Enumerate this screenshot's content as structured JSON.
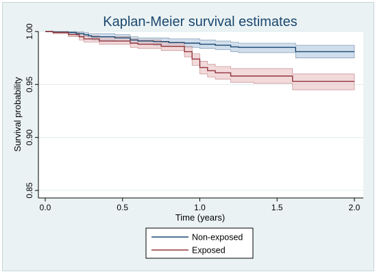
{
  "chart_data": {
    "type": "line",
    "title": "Kaplan-Meier survival estimates",
    "xlabel": "Time (years)",
    "ylabel": "Survival probability",
    "xlim": [
      0,
      2
    ],
    "ylim": [
      0.85,
      1.0
    ],
    "xticks": [
      "0.0",
      "0.5",
      "1.0",
      "1.5",
      "2.0"
    ],
    "yticks": [
      "0.85",
      "0.90",
      "0.95",
      "1.00"
    ],
    "grid": true,
    "legend_position": "bottom",
    "series": [
      {
        "name": "Non-exposed",
        "color": "#1a476f",
        "band_color": "#a9c3dc",
        "x": [
          0,
          0.05,
          0.15,
          0.2,
          0.25,
          0.28,
          0.3,
          0.45,
          0.55,
          0.6,
          0.7,
          0.8,
          0.9,
          1.0,
          1.1,
          1.2,
          1.25,
          1.4,
          1.62,
          2.0
        ],
        "y": [
          1.0,
          0.9995,
          0.999,
          0.998,
          0.997,
          0.996,
          0.995,
          0.994,
          0.992,
          0.991,
          0.9905,
          0.9895,
          0.989,
          0.988,
          0.987,
          0.9855,
          0.985,
          0.985,
          0.981,
          0.981
        ],
        "lower": [
          1.0,
          0.999,
          0.998,
          0.996,
          0.995,
          0.993,
          0.992,
          0.991,
          0.989,
          0.988,
          0.987,
          0.986,
          0.985,
          0.984,
          0.983,
          0.981,
          0.98,
          0.98,
          0.975,
          0.975
        ],
        "upper": [
          1.0,
          1.0,
          1.0,
          0.9995,
          0.999,
          0.998,
          0.998,
          0.997,
          0.995,
          0.994,
          0.994,
          0.993,
          0.993,
          0.992,
          0.991,
          0.99,
          0.989,
          0.989,
          0.987,
          0.987
        ]
      },
      {
        "name": "Exposed",
        "color": "#90353b",
        "band_color": "#e7b9bc",
        "x": [
          0,
          0.05,
          0.15,
          0.22,
          0.25,
          0.35,
          0.55,
          0.6,
          0.75,
          0.9,
          0.95,
          1.0,
          1.05,
          1.1,
          1.2,
          1.35,
          1.6,
          2.0
        ],
        "y": [
          1.0,
          0.999,
          0.997,
          0.995,
          0.993,
          0.991,
          0.989,
          0.988,
          0.986,
          0.981,
          0.974,
          0.966,
          0.963,
          0.961,
          0.958,
          0.958,
          0.953,
          0.953
        ],
        "lower": [
          1.0,
          0.998,
          0.995,
          0.992,
          0.99,
          0.988,
          0.985,
          0.984,
          0.982,
          0.976,
          0.968,
          0.96,
          0.957,
          0.955,
          0.952,
          0.951,
          0.945,
          0.945
        ],
        "upper": [
          1.0,
          1.0,
          0.999,
          0.998,
          0.996,
          0.995,
          0.993,
          0.992,
          0.99,
          0.986,
          0.979,
          0.972,
          0.969,
          0.967,
          0.965,
          0.965,
          0.96,
          0.96
        ]
      }
    ]
  }
}
